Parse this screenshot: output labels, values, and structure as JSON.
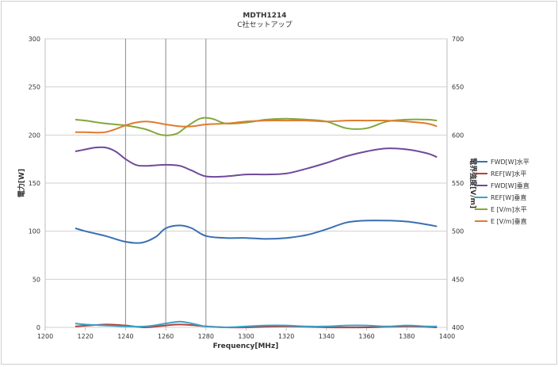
{
  "chart_data": {
    "type": "line",
    "title": "MDTH1214",
    "subtitle": "C社セットアップ",
    "xlabel": "Frequency[MHz]",
    "ylabel": "電力[W]",
    "y2label": "電界強度[V/m]",
    "xlim": [
      1200,
      1400
    ],
    "ylim": [
      0,
      300
    ],
    "y2lim": [
      400,
      700
    ],
    "x_ticks": [
      1200,
      1220,
      1240,
      1260,
      1280,
      1300,
      1320,
      1340,
      1360,
      1380,
      1400
    ],
    "y_ticks": [
      0,
      50,
      100,
      150,
      200,
      250,
      300
    ],
    "y2_ticks": [
      400,
      450,
      500,
      550,
      600,
      650,
      700
    ],
    "grid": "horizontal major + partial vertical",
    "legend_position": "right",
    "series": [
      {
        "name": "FWD[W]水平",
        "axis": "left",
        "color": "#3a6fb0",
        "x": [
          1215,
          1220,
          1230,
          1240,
          1248,
          1255,
          1260,
          1267,
          1273,
          1280,
          1290,
          1300,
          1310,
          1320,
          1330,
          1340,
          1350,
          1360,
          1370,
          1380,
          1390,
          1395
        ],
        "y": [
          103,
          100,
          95,
          89,
          88,
          94,
          103,
          106,
          103,
          95,
          93,
          93,
          92,
          93,
          96,
          102,
          109,
          111,
          111,
          110,
          107,
          105
        ]
      },
      {
        "name": "REF[W]水平",
        "axis": "left",
        "color": "#b5403a",
        "x": [
          1215,
          1230,
          1240,
          1250,
          1260,
          1267,
          1275,
          1280,
          1290,
          1300,
          1320,
          1340,
          1360,
          1380,
          1395
        ],
        "y": [
          1,
          3,
          2,
          0,
          2,
          3,
          2,
          1,
          0,
          0,
          1,
          0,
          0,
          1,
          0
        ]
      },
      {
        "name": "FWD[W]垂直",
        "axis": "left",
        "color": "#6f4a9a",
        "x": [
          1215,
          1220,
          1225,
          1230,
          1235,
          1240,
          1245,
          1250,
          1260,
          1267,
          1273,
          1280,
          1290,
          1300,
          1310,
          1320,
          1330,
          1340,
          1350,
          1360,
          1370,
          1380,
          1390,
          1395
        ],
        "y": [
          183,
          185,
          187,
          187,
          183,
          175,
          169,
          168,
          169,
          168,
          163,
          157,
          157,
          159,
          159,
          160,
          165,
          171,
          178,
          183,
          186,
          185,
          181,
          177
        ]
      },
      {
        "name": "REF[W]垂直",
        "axis": "left",
        "color": "#3aa0c8",
        "x": [
          1215,
          1220,
          1230,
          1240,
          1250,
          1260,
          1267,
          1273,
          1280,
          1290,
          1300,
          1310,
          1320,
          1330,
          1340,
          1350,
          1360,
          1370,
          1380,
          1390,
          1395
        ],
        "y": [
          4,
          3,
          2,
          1,
          1,
          4,
          6,
          4,
          1,
          0,
          1,
          2,
          2,
          1,
          1,
          2,
          2,
          1,
          2,
          1,
          1
        ]
      },
      {
        "name": "E [V/m]水平",
        "axis": "right",
        "color": "#82a83c",
        "x": [
          1215,
          1220,
          1230,
          1240,
          1250,
          1258,
          1265,
          1270,
          1277,
          1283,
          1290,
          1300,
          1310,
          1320,
          1330,
          1340,
          1350,
          1360,
          1370,
          1380,
          1390,
          1395
        ],
        "y": [
          616,
          615,
          612,
          610,
          606,
          600,
          601,
          608,
          617,
          617,
          612,
          613,
          616,
          617,
          616,
          614,
          607,
          607,
          614,
          616,
          616,
          615
        ]
      },
      {
        "name": "E [V/m]垂直",
        "axis": "right",
        "color": "#e07b2e",
        "x": [
          1215,
          1220,
          1230,
          1240,
          1245,
          1250,
          1255,
          1260,
          1267,
          1273,
          1280,
          1290,
          1300,
          1310,
          1320,
          1330,
          1340,
          1350,
          1360,
          1370,
          1380,
          1390,
          1395
        ],
        "y": [
          603,
          603,
          603,
          610,
          613,
          614,
          613,
          611,
          609,
          609,
          611,
          612,
          614,
          615,
          615,
          615,
          614,
          615,
          615,
          615,
          614,
          612,
          609
        ]
      }
    ]
  }
}
